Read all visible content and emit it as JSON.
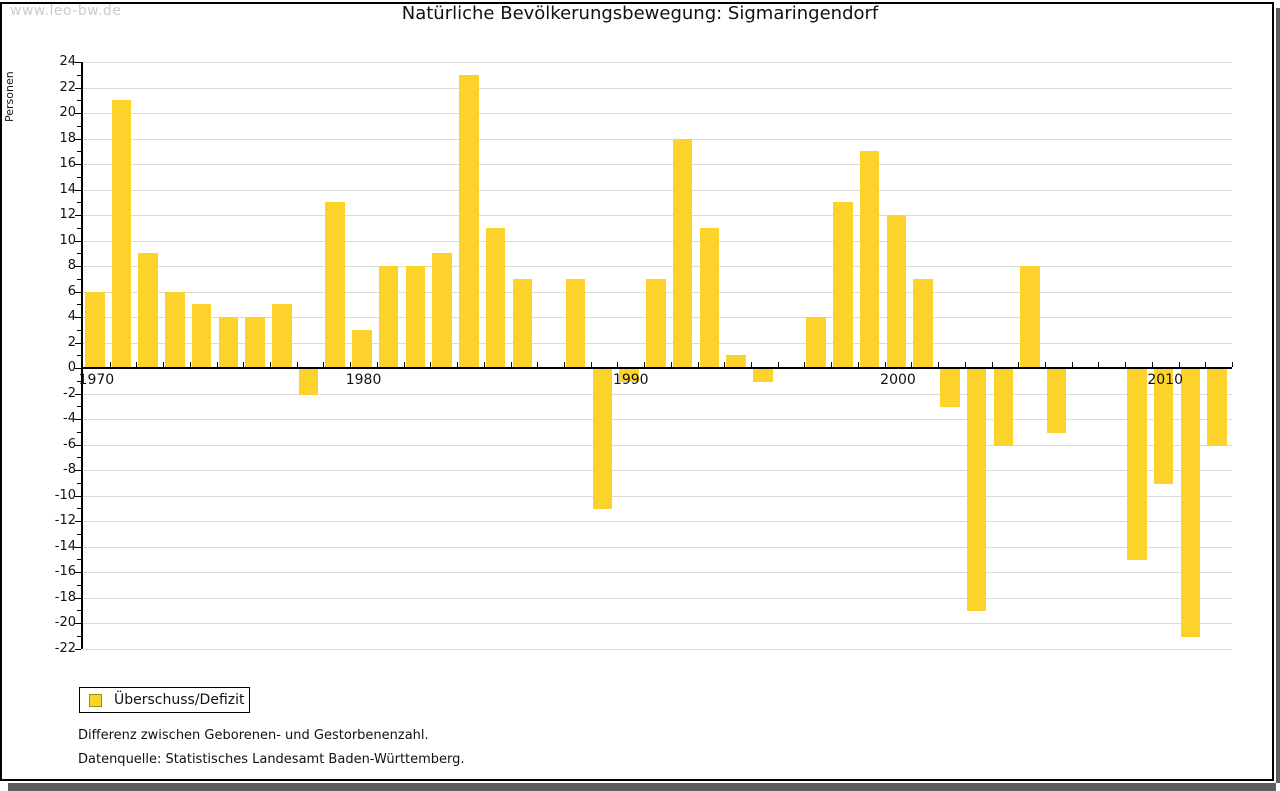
{
  "watermark": "www.leo-bw.de",
  "title": "Natürliche Bevölkerungsbewegung: Sigmaringendorf",
  "legend": {
    "label": "Überschuss/Defizit",
    "swatch_color": "#fcd22b",
    "swatch_border": "#a68a00"
  },
  "footnotes": [
    "Differenz zwischen Geborenen- und Gestorbenenzahl.",
    "Datenquelle: Statistisches Landesamt Baden-Württemberg."
  ],
  "colors": {
    "bar": "#fcd22b",
    "grid": "#dbdbdb",
    "axis": "#000000",
    "watermark": "#cccccc",
    "shadow": "#5e5e5e"
  },
  "chart_data": {
    "type": "bar",
    "title": "Natürliche Bevölkerungsbewegung: Sigmaringendorf",
    "series_name": "Überschuss/Defizit",
    "ylabel": "Personen",
    "xlabel": "",
    "ylim": [
      -22,
      24
    ],
    "ytick_step": 2,
    "grid": "horizontal",
    "legend_position": "bottom-left",
    "xtick_labels": [
      1970,
      1980,
      1990,
      2000,
      2010
    ],
    "x": [
      1970,
      1971,
      1972,
      1973,
      1974,
      1975,
      1976,
      1977,
      1978,
      1979,
      1980,
      1981,
      1982,
      1983,
      1984,
      1985,
      1986,
      1987,
      1988,
      1989,
      1990,
      1991,
      1992,
      1993,
      1994,
      1995,
      1996,
      1997,
      1998,
      1999,
      2000,
      2001,
      2002,
      2003,
      2004,
      2005,
      2006,
      2007,
      2008,
      2009,
      2010,
      2011,
      2012
    ],
    "values": [
      6,
      21,
      9,
      6,
      5,
      4,
      4,
      5,
      -2,
      13,
      3,
      8,
      8,
      9,
      23,
      11,
      7,
      0,
      7,
      -11,
      -1,
      7,
      18,
      11,
      1,
      -1,
      0,
      4,
      13,
      17,
      12,
      7,
      -3,
      -19,
      -6,
      8,
      -5,
      0,
      0,
      -15,
      -9,
      -21,
      -6
    ]
  }
}
